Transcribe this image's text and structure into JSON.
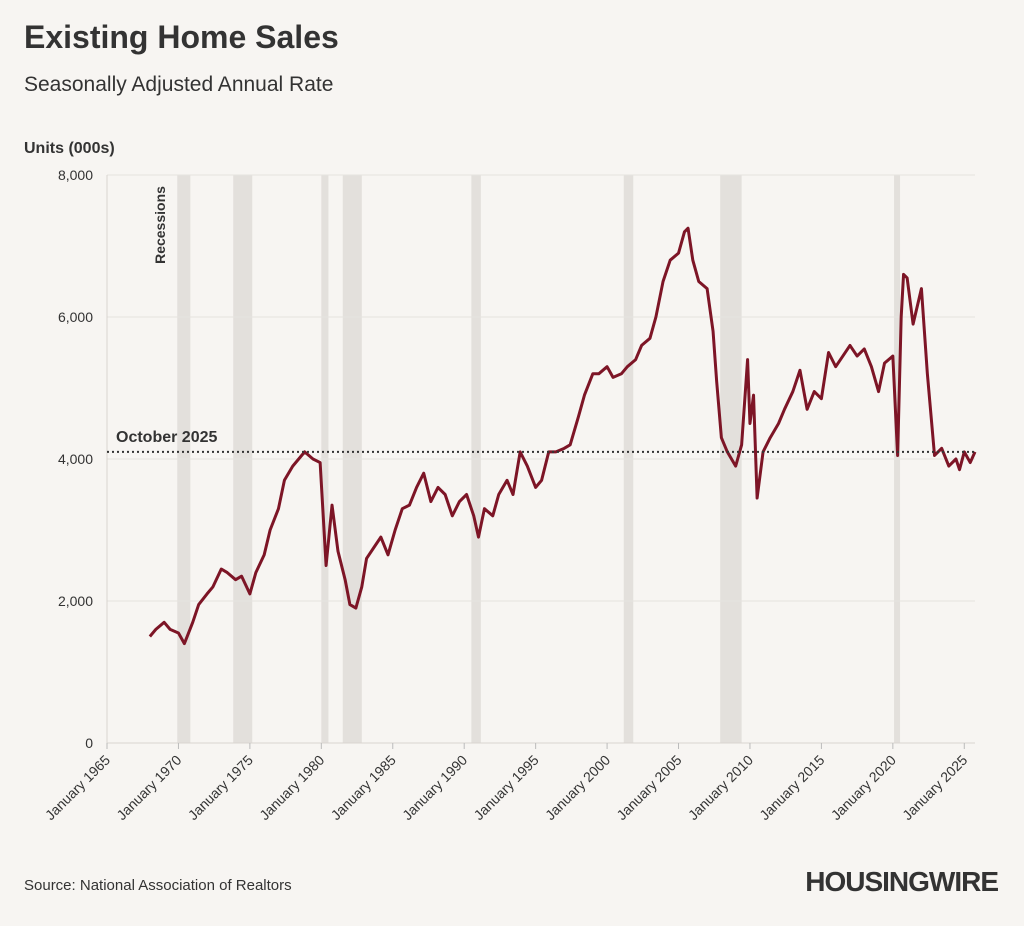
{
  "chart_data": {
    "type": "line",
    "title": "Existing Home Sales",
    "subtitle": "Seasonally Adjusted Annual Rate",
    "y_label": "Units (000s)",
    "source": "Source: National Association of Realtors",
    "brand": "HOUSINGWIRE",
    "recession_label": "Recessions",
    "grid": true,
    "xlim": [
      "1965-01",
      "2025-10"
    ],
    "xticks": [
      {
        "value": "1965-01",
        "label": "January 1965"
      },
      {
        "value": "1970-01",
        "label": "January 1970"
      },
      {
        "value": "1975-01",
        "label": "January 1975"
      },
      {
        "value": "1980-01",
        "label": "January 1980"
      },
      {
        "value": "1985-01",
        "label": "January 1985"
      },
      {
        "value": "1990-01",
        "label": "January 1990"
      },
      {
        "value": "1995-01",
        "label": "January 1995"
      },
      {
        "value": "2000-01",
        "label": "January 2000"
      },
      {
        "value": "2005-01",
        "label": "January 2005"
      },
      {
        "value": "2010-01",
        "label": "January 2010"
      },
      {
        "value": "2015-01",
        "label": "January 2015"
      },
      {
        "value": "2020-01",
        "label": "January 2020"
      },
      {
        "value": "2025-01",
        "label": "January 2025"
      }
    ],
    "ylim": [
      0,
      8000
    ],
    "yticks": [
      0,
      {
        "value": 2000,
        "label": "2,000"
      },
      {
        "value": 4000,
        "label": "4,000"
      },
      {
        "value": 6000,
        "label": "6,000"
      },
      {
        "value": 8000,
        "label": "8,000"
      }
    ],
    "recessions": [
      {
        "start": "1969-12",
        "end": "1970-11"
      },
      {
        "start": "1973-11",
        "end": "1975-03"
      },
      {
        "start": "1980-01",
        "end": "1980-07"
      },
      {
        "start": "1981-07",
        "end": "1982-11"
      },
      {
        "start": "1990-07",
        "end": "1991-03"
      },
      {
        "start": "2001-03",
        "end": "2001-11"
      },
      {
        "start": "2007-12",
        "end": "2009-06"
      },
      {
        "start": "2020-02",
        "end": "2020-04"
      }
    ],
    "reference_line": {
      "label": "October 2025",
      "value": 4100
    },
    "x": [
      "1968-01",
      "1968-06",
      "1969-01",
      "1969-06",
      "1970-01",
      "1970-06",
      "1971-01",
      "1971-06",
      "1972-01",
      "1972-06",
      "1973-01",
      "1973-06",
      "1974-01",
      "1974-06",
      "1975-01",
      "1975-06",
      "1976-01",
      "1976-06",
      "1977-01",
      "1977-06",
      "1978-01",
      "1978-06",
      "1978-11",
      "1979-06",
      "1979-12",
      "1980-05",
      "1980-10",
      "1981-03",
      "1981-09",
      "1982-01",
      "1982-06",
      "1982-11",
      "1983-03",
      "1983-09",
      "1984-03",
      "1984-09",
      "1985-03",
      "1985-09",
      "1986-03",
      "1986-09",
      "1987-03",
      "1987-09",
      "1988-03",
      "1988-09",
      "1989-03",
      "1989-09",
      "1990-03",
      "1990-09",
      "1991-01",
      "1991-06",
      "1992-01",
      "1992-06",
      "1993-01",
      "1993-06",
      "1993-12",
      "1994-06",
      "1995-01",
      "1995-06",
      "1995-12",
      "1996-06",
      "1997-01",
      "1997-06",
      "1998-01",
      "1998-06",
      "1999-01",
      "1999-06",
      "2000-01",
      "2000-06",
      "2001-01",
      "2001-06",
      "2002-01",
      "2002-06",
      "2003-01",
      "2003-06",
      "2003-12",
      "2004-06",
      "2005-01",
      "2005-06",
      "2005-09",
      "2006-01",
      "2006-06",
      "2007-01",
      "2007-06",
      "2007-09",
      "2008-01",
      "2008-06",
      "2009-01",
      "2009-06",
      "2009-11",
      "2010-01",
      "2010-04",
      "2010-07",
      "2010-12",
      "2011-06",
      "2012-01",
      "2012-06",
      "2013-01",
      "2013-07",
      "2014-01",
      "2014-07",
      "2015-01",
      "2015-07",
      "2016-01",
      "2016-07",
      "2017-01",
      "2017-07",
      "2018-01",
      "2018-07",
      "2019-01",
      "2019-06",
      "2020-01",
      "2020-05",
      "2020-08",
      "2020-10",
      "2021-01",
      "2021-06",
      "2022-01",
      "2022-06",
      "2022-12",
      "2023-06",
      "2023-12",
      "2024-06",
      "2024-09",
      "2025-01",
      "2025-06",
      "2025-10"
    ],
    "series": [
      {
        "name": "Existing home sales",
        "color": "#7d1526",
        "values": [
          1500,
          1600,
          1700,
          1600,
          1550,
          1400,
          1700,
          1950,
          2100,
          2200,
          2450,
          2400,
          2300,
          2350,
          2100,
          2400,
          2650,
          3000,
          3300,
          3700,
          3900,
          4000,
          4100,
          4000,
          3950,
          2500,
          3350,
          2700,
          2300,
          1950,
          1900,
          2200,
          2600,
          2750,
          2900,
          2650,
          3000,
          3300,
          3350,
          3600,
          3800,
          3400,
          3600,
          3500,
          3200,
          3400,
          3500,
          3200,
          2900,
          3300,
          3200,
          3500,
          3700,
          3500,
          4100,
          3900,
          3600,
          3700,
          4100,
          4100,
          4150,
          4200,
          4600,
          4900,
          5200,
          5200,
          5300,
          5150,
          5200,
          5300,
          5400,
          5600,
          5700,
          6000,
          6500,
          6800,
          6900,
          7200,
          7250,
          6800,
          6500,
          6400,
          5800,
          5100,
          4300,
          4100,
          3900,
          4200,
          5400,
          4500,
          4900,
          3450,
          4100,
          4300,
          4500,
          4700,
          4950,
          5250,
          4700,
          4950,
          4850,
          5500,
          5300,
          5450,
          5600,
          5450,
          5550,
          5300,
          4950,
          5350,
          5450,
          4050,
          6000,
          6600,
          6550,
          5900,
          6400,
          5200,
          4050,
          4150,
          3900,
          4000,
          3850,
          4100,
          3950,
          4100
        ]
      }
    ]
  }
}
